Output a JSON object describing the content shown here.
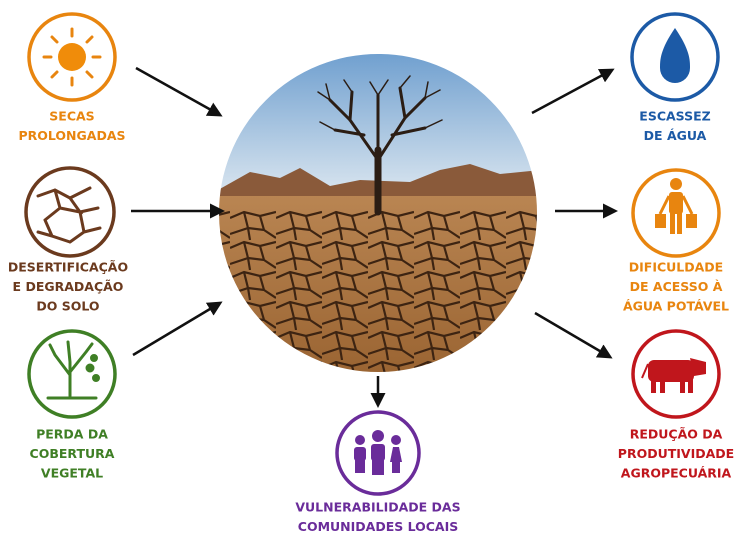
{
  "causes": [
    {
      "lines": [
        "SECAS",
        "PROLONGADAS"
      ]
    },
    {
      "lines": [
        "DESERTIFICAÇÃO",
        "E DEGRADAÇÃO",
        "DO SOLO"
      ]
    },
    {
      "lines": [
        "PERDA DA",
        "COBERTURA",
        "VEGETAL"
      ]
    }
  ],
  "effects": [
    {
      "lines": [
        "ESCASSEZ",
        "DE ÁGUA"
      ]
    },
    {
      "lines": [
        "DIFICULDADE",
        "DE ACESSO À",
        "ÁGUA POTÁVEL"
      ]
    },
    {
      "lines": [
        "REDUÇÃO DA",
        "PRODUTIVIDADE",
        "AGROPECUÁRIA"
      ]
    },
    {
      "lines": [
        "VULNERABILIDADE DAS",
        "COMUNIDADES LOCAIS"
      ]
    }
  ]
}
